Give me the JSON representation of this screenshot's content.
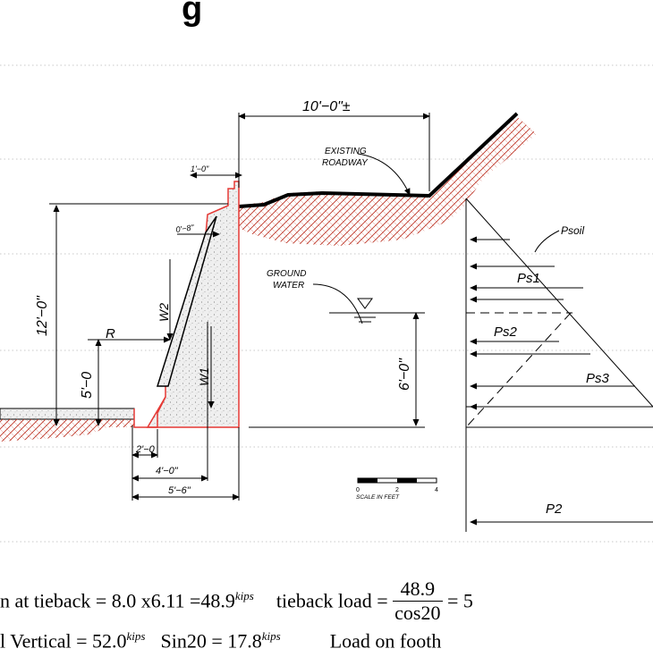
{
  "title_fragment": "g",
  "labels": {
    "width_top": "10'−0\"±",
    "existing_roadway": "EXISTING\nROADWAY",
    "dim_1ft": "1'−0\"",
    "dim_8in": "0'−8\"",
    "psoil": "Psoil",
    "ground_water": "GROUND\nWATER",
    "ps1": "Ps1",
    "ps2": "Ps2",
    "ps3": "Ps3",
    "p2": "P2",
    "w1": "W1",
    "w2": "W2",
    "r": "R",
    "dim_12ft": "12'−0\"",
    "dim_5ft": "5'−0",
    "dim_6ft": "6'−0\"",
    "dim_2ft": "2'−0",
    "dim_4ft": "4'−0\"",
    "dim_5ft6": "5'−6\"",
    "scale_nums": [
      "0",
      "2",
      "4"
    ],
    "scale_caption": "SCALE IN FEET"
  },
  "equations": {
    "line1_left": "n at tieback = 8.0 x6.11 =48.9",
    "line1_left_unit": "kips",
    "line1_mid": "tieback load =",
    "frac_num": "48.9",
    "frac_den": "cos20",
    "line1_right": "= 5",
    "line2_a": "l Vertical = 52.0",
    "line2_a_unit": "kips",
    "line2_b": "Sin20 = 17.8",
    "line2_b_unit": "kips",
    "line2_c": "Load on footh"
  },
  "colors": {
    "hatch": "#c0392b",
    "outline": "#e53935",
    "concrete_fill": "#e8e8e8",
    "grid": "#c8c8c8"
  }
}
